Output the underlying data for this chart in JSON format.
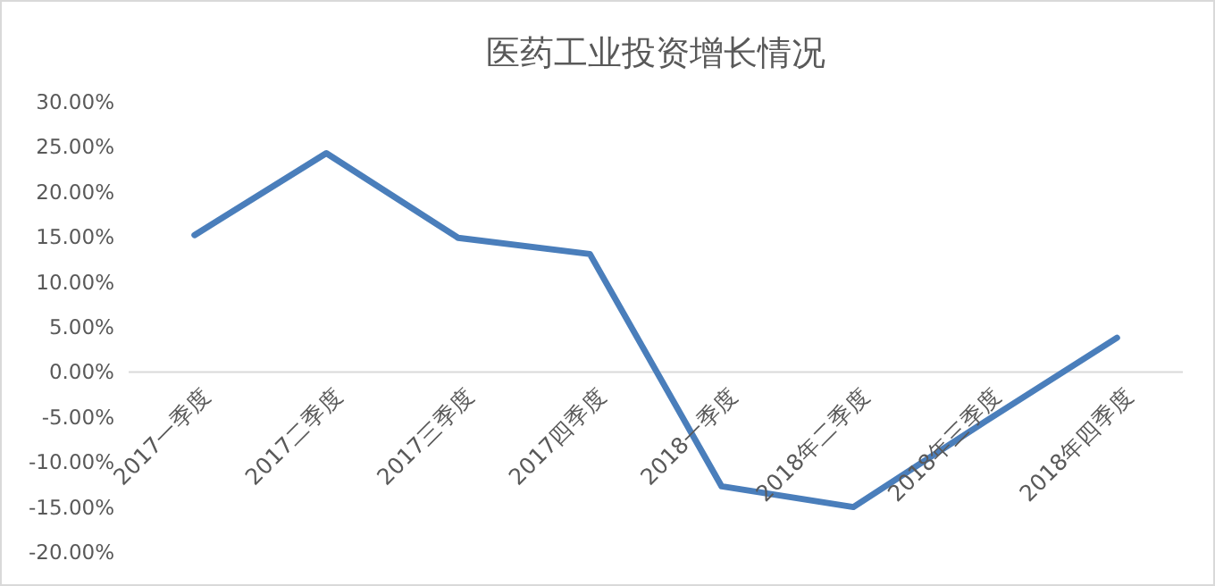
{
  "chart_data": {
    "type": "line",
    "title": "医药工业投资增长情况",
    "categories": [
      "2017一季度",
      "2017二季度",
      "2017三季度",
      "2017四季度",
      "2018一季度",
      "2018年二季度",
      "2018年三季度",
      "2018年四季度"
    ],
    "series": [
      {
        "color": "#4a7ebb",
        "values": [
          15.2,
          24.3,
          14.9,
          13.1,
          -12.7,
          -15.0,
          -5.5,
          3.8
        ]
      }
    ],
    "ylim": [
      -20,
      30
    ],
    "yticks": [
      {
        "value": -20,
        "label": "-20.00%"
      },
      {
        "value": -15,
        "label": "-15.00%"
      },
      {
        "value": -10,
        "label": "-10.00%"
      },
      {
        "value": -5,
        "label": "-5.00%"
      },
      {
        "value": 0,
        "label": "0.00%"
      },
      {
        "value": 5,
        "label": "5.00%"
      },
      {
        "value": 10,
        "label": "10.00%"
      },
      {
        "value": 15,
        "label": "15.00%"
      },
      {
        "value": 20,
        "label": "20.00%"
      },
      {
        "value": 25,
        "label": "25.00%"
      },
      {
        "value": 30,
        "label": "30.00%"
      }
    ],
    "marker": "none",
    "line_style": "solid"
  }
}
